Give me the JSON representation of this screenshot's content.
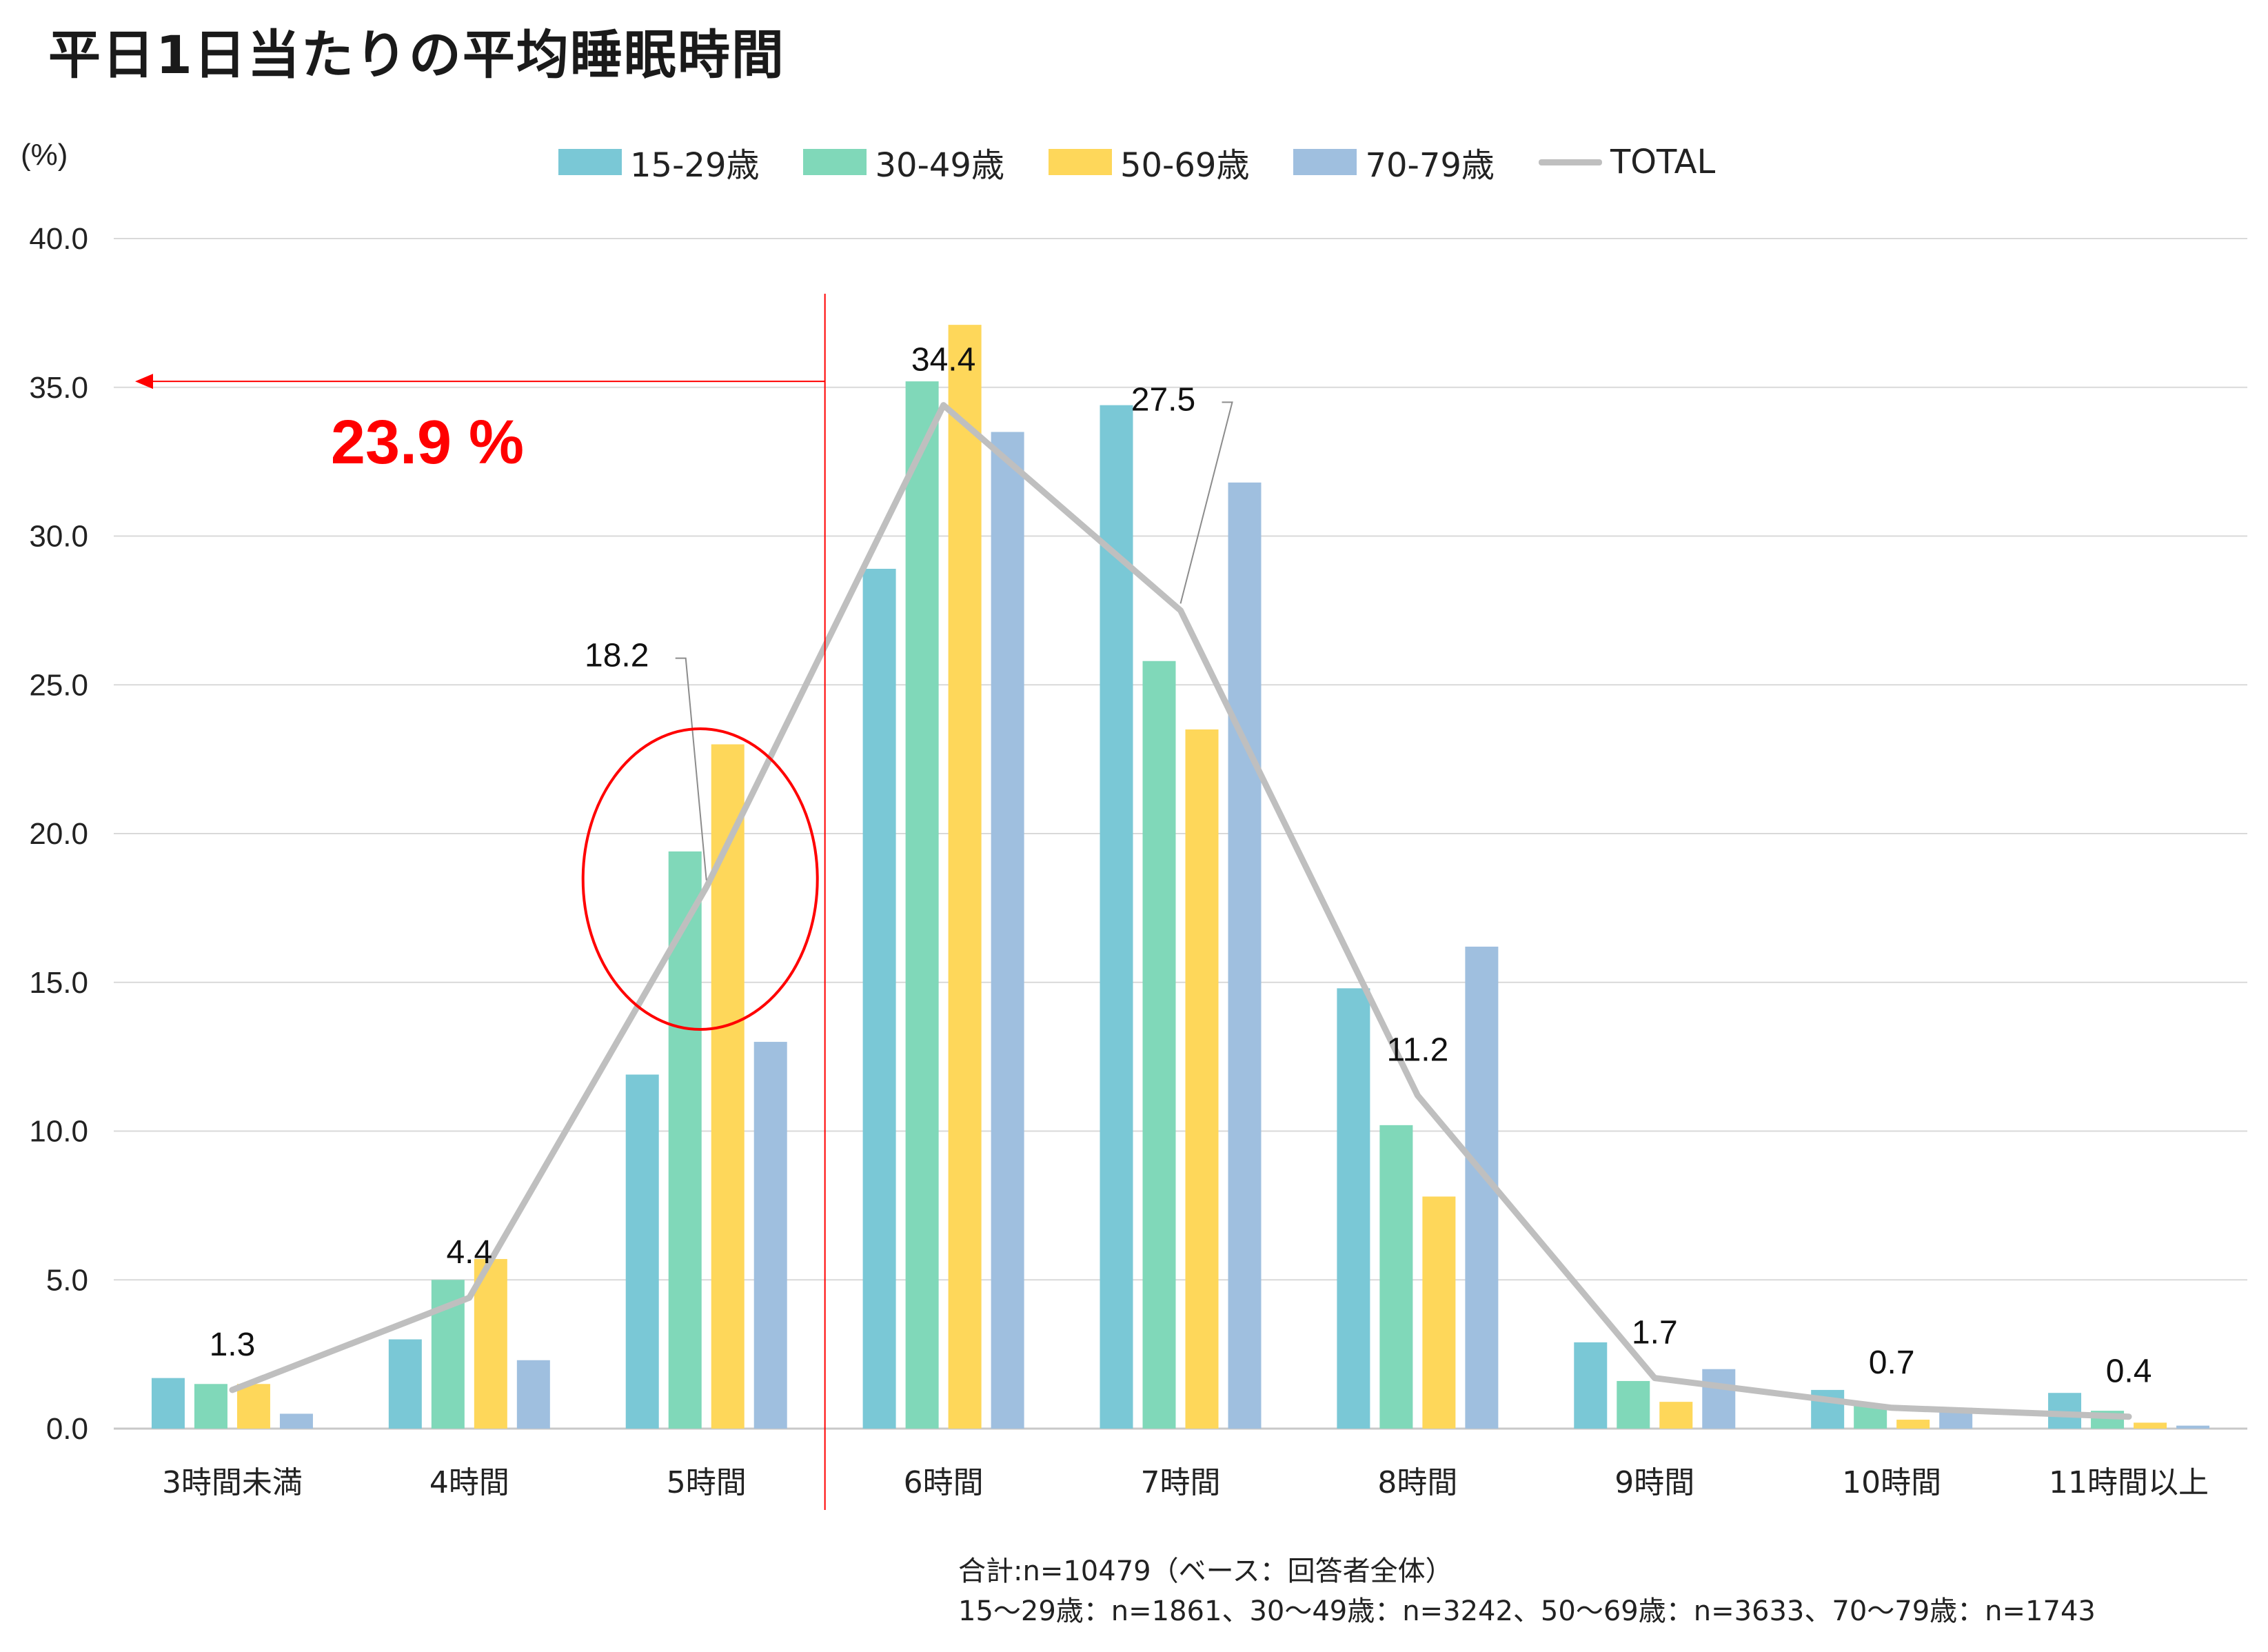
{
  "title": "平日1日当たりの平均睡眠時間",
  "unit_label": "(%)",
  "note": {
    "line1": "合計:n=10479（ベース：回答者全体）",
    "line2": "15～29歳：n=1861、30～49歳：n=3242、50～69歳：n=3633、70～79歳：n=1743"
  },
  "annotation": {
    "label": "23.9 %",
    "color": "#ff0000",
    "spans_categories": [
      "3時間未満",
      "4時間",
      "5時間"
    ]
  },
  "chart_data": {
    "type": "bar",
    "title": "平日1日当たりの平均睡眠時間",
    "xlabel": "",
    "ylabel": "(%)",
    "ylim": [
      0,
      40
    ],
    "y_ticks": [
      "0.0",
      "5.0",
      "10.0",
      "15.0",
      "20.0",
      "25.0",
      "30.0",
      "35.0",
      "40.0"
    ],
    "grid": true,
    "legend_position": "top",
    "categories": [
      "3時間未満",
      "4時間",
      "5時間",
      "6時間",
      "7時間",
      "8時間",
      "9時間",
      "10時間",
      "11時間以上"
    ],
    "series": [
      {
        "name": "15-29歳",
        "type": "bar",
        "color": "#7ac8d6",
        "values": [
          1.7,
          3.0,
          11.9,
          28.9,
          34.4,
          14.8,
          2.9,
          1.3,
          1.2
        ]
      },
      {
        "name": "30-49歳",
        "type": "bar",
        "color": "#80d8b9",
        "values": [
          1.5,
          5.0,
          19.4,
          35.2,
          25.8,
          10.2,
          1.6,
          0.8,
          0.6
        ]
      },
      {
        "name": "50-69歳",
        "type": "bar",
        "color": "#fed75a",
        "values": [
          1.5,
          5.7,
          23.0,
          37.1,
          23.5,
          7.8,
          0.9,
          0.3,
          0.2
        ]
      },
      {
        "name": "70-79歳",
        "type": "bar",
        "color": "#9fbfdf",
        "values": [
          0.5,
          2.3,
          13.0,
          33.5,
          31.8,
          16.2,
          2.0,
          0.7,
          0.1
        ]
      },
      {
        "name": "TOTAL",
        "type": "line",
        "color": "#bfbfbf",
        "values": [
          1.3,
          4.4,
          18.2,
          34.4,
          27.5,
          11.2,
          1.7,
          0.7,
          0.4
        ]
      }
    ],
    "data_labels": [
      "1.3",
      "4.4",
      "18.2",
      "34.4",
      "27.5",
      "11.2",
      "1.7",
      "0.7",
      "0.4"
    ]
  }
}
